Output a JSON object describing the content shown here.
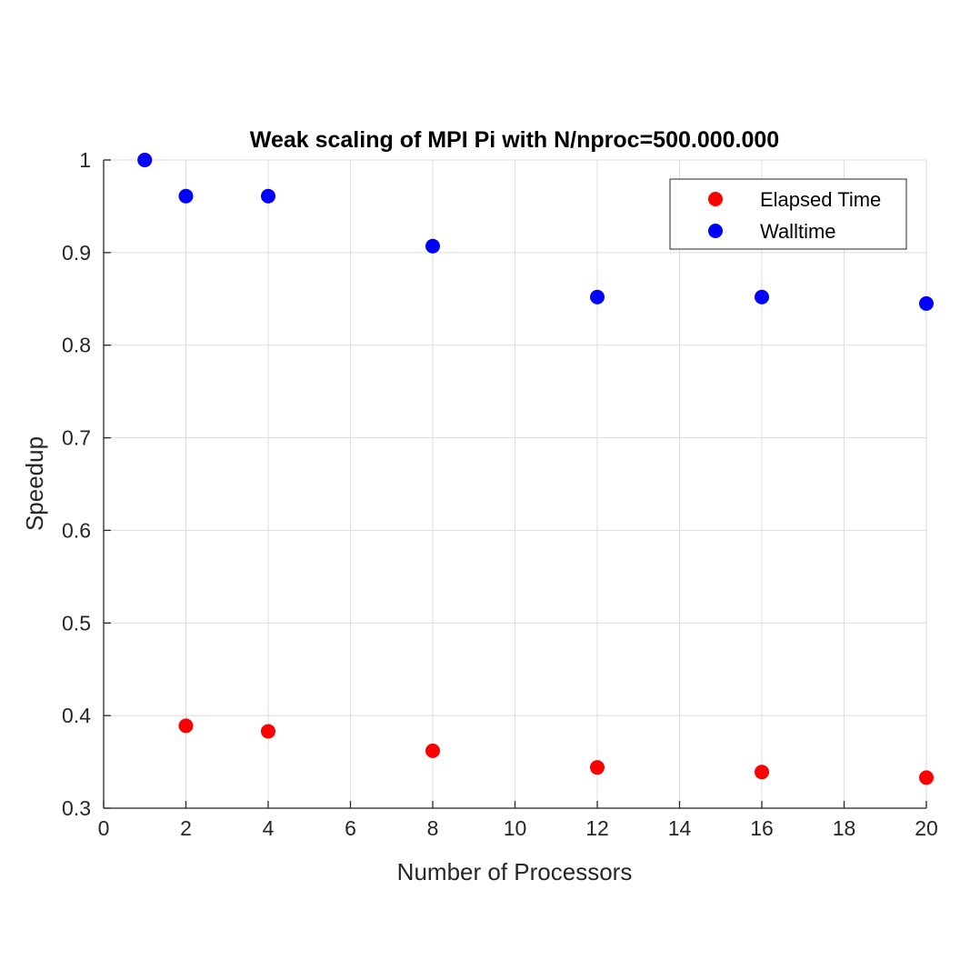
{
  "chart_data": {
    "type": "scatter",
    "title": "Weak scaling of MPI Pi with N/nproc=500.000.000",
    "xlabel": "Number of Processors",
    "ylabel": "Speedup",
    "xlim": [
      0,
      20
    ],
    "ylim": [
      0.3,
      1
    ],
    "xticks": [
      0,
      2,
      4,
      6,
      8,
      10,
      12,
      14,
      16,
      18,
      20
    ],
    "xtick_labels": [
      "0",
      "2",
      "4",
      "6",
      "8",
      "10",
      "12",
      "14",
      "16",
      "18",
      "20"
    ],
    "yticks": [
      0.3,
      0.4,
      0.5,
      0.6,
      0.7,
      0.8,
      0.9,
      1
    ],
    "ytick_labels": [
      "0.3",
      "0.4",
      "0.5",
      "0.6",
      "0.7",
      "0.8",
      "0.9",
      "1"
    ],
    "grid": true,
    "legend_position": "top-right",
    "series": [
      {
        "name": "Elapsed Time",
        "color": "#ff0000",
        "x": [
          1,
          2,
          4,
          8,
          12,
          16,
          20
        ],
        "y": [
          1.0,
          0.389,
          0.383,
          0.362,
          0.344,
          0.339,
          0.333
        ]
      },
      {
        "name": "Walltime",
        "color": "#0000ff",
        "x": [
          1,
          2,
          4,
          8,
          12,
          16,
          20
        ],
        "y": [
          1.0,
          0.961,
          0.961,
          0.907,
          0.852,
          0.852,
          0.845
        ]
      }
    ]
  }
}
